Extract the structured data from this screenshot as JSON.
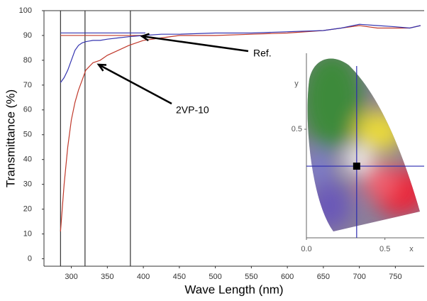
{
  "chart_data": [
    {
      "type": "line",
      "xlabel": "Wave Length (nm)",
      "ylabel": "Transmittance (%)",
      "x": [
        285,
        290,
        295,
        300,
        305,
        310,
        315,
        320,
        330,
        340,
        350,
        365,
        380,
        400,
        425,
        450,
        500,
        550,
        600,
        650,
        675,
        700,
        725,
        750,
        770,
        785
      ],
      "series": [
        {
          "name": "2VP-10",
          "color": "#c0392b",
          "values": [
            11,
            30,
            45,
            56,
            63,
            68,
            72,
            76,
            79,
            80,
            82,
            84,
            86,
            88,
            89,
            90,
            90,
            90.5,
            91,
            92,
            93,
            94,
            93,
            93,
            93,
            94
          ]
        },
        {
          "name": "Ref.",
          "color": "#3535b0",
          "values": [
            71,
            73,
            76,
            80,
            84,
            86,
            87,
            87.5,
            88,
            88,
            88.5,
            89,
            89.5,
            90,
            90.5,
            90.5,
            91,
            91,
            91.5,
            92,
            93,
            94.5,
            94,
            93.5,
            93,
            94
          ]
        }
      ],
      "xlim": [
        262,
        790
      ],
      "ylim": [
        -3,
        100
      ],
      "xticks": [
        300,
        350,
        400,
        450,
        500,
        550,
        600,
        650,
        700,
        750
      ],
      "yticks": [
        0,
        10,
        20,
        30,
        40,
        50,
        60,
        70,
        80,
        90,
        100
      ],
      "vlines": [
        285,
        319,
        382
      ],
      "hlines": [
        {
          "value": 90,
          "color": "#c0392b"
        },
        {
          "value": 91,
          "color": "#3535b0"
        }
      ]
    },
    {
      "type": "scatter",
      "xlabel": "x",
      "ylabel": "y",
      "x": [
        0.32
      ],
      "values": [
        0.33
      ],
      "color": "#000000",
      "line_color": "#2b2bb0",
      "xlim": [
        0,
        0.75
      ],
      "ylim": [
        0,
        0.85
      ],
      "xticks": [
        {
          "value": 0,
          "label": "0.0"
        },
        0.5
      ],
      "yticks": [
        0.5
      ]
    }
  ]
}
